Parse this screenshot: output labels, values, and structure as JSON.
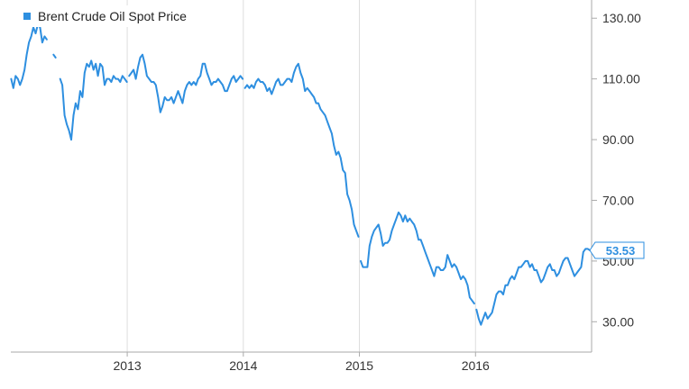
{
  "chart_data": {
    "type": "line",
    "title": "",
    "xlabel": "",
    "ylabel": "",
    "legend_position": "top-left",
    "grid": {
      "vertical": true,
      "horizontal": false
    },
    "ylim": [
      20,
      136
    ],
    "xlim": [
      "2012-01-01",
      "2016-12-31"
    ],
    "x_ticks": [
      "2013",
      "2014",
      "2015",
      "2016"
    ],
    "y_ticks": [
      "30.00",
      "50.00",
      "70.00",
      "90.00",
      "110.00",
      "130.00"
    ],
    "last_value_label": "53.53",
    "colors": {
      "series": "#2e8fe0",
      "grid": "#dddddd",
      "axis": "#aaaaaa"
    },
    "series": [
      {
        "name": "Brent Crude Oil Spot Price",
        "segments": [
          {
            "x": [
              "2012-01-02",
              "2012-01-09",
              "2012-01-16",
              "2012-01-23",
              "2012-01-30",
              "2012-02-06",
              "2012-02-13",
              "2012-02-20",
              "2012-02-27",
              "2012-03-05",
              "2012-03-12",
              "2012-03-19",
              "2012-03-26",
              "2012-04-02",
              "2012-04-09",
              "2012-04-16",
              "2012-04-23"
            ],
            "y": [
              110,
              107,
              111,
              110,
              108,
              110,
              113,
              118,
              122,
              124,
              127,
              125,
              128,
              127,
              122,
              124,
              123
            ]
          },
          {
            "x": [
              "2012-05-14",
              "2012-05-21"
            ],
            "y": [
              118,
              117
            ]
          },
          {
            "x": [
              "2012-06-04",
              "2012-06-11",
              "2012-06-18",
              "2012-06-25",
              "2012-07-02",
              "2012-07-09",
              "2012-07-16",
              "2012-07-23",
              "2012-07-30",
              "2012-08-06",
              "2012-08-13",
              "2012-08-20",
              "2012-08-27",
              "2012-09-03",
              "2012-09-10",
              "2012-09-17",
              "2012-09-24",
              "2012-10-01",
              "2012-10-08",
              "2012-10-15",
              "2012-10-22",
              "2012-10-29",
              "2012-11-05",
              "2012-11-12",
              "2012-11-19",
              "2012-11-26",
              "2012-12-03",
              "2012-12-10",
              "2012-12-17",
              "2012-12-24",
              "2012-12-31"
            ],
            "y": [
              110,
              108,
              98,
              95,
              93,
              90,
              98,
              102,
              100,
              106,
              104,
              112,
              115,
              114,
              116,
              113,
              115,
              111,
              115,
              114,
              108,
              110,
              110,
              109,
              111,
              110,
              110,
              109,
              111,
              110,
              109
            ]
          },
          {
            "x": [
              "2013-01-07",
              "2013-01-14",
              "2013-01-21",
              "2013-01-28",
              "2013-02-04",
              "2013-02-11",
              "2013-02-18",
              "2013-02-25",
              "2013-03-04",
              "2013-03-11",
              "2013-03-18",
              "2013-03-25",
              "2013-04-01",
              "2013-04-08",
              "2013-04-15",
              "2013-04-22",
              "2013-04-29",
              "2013-05-06",
              "2013-05-13",
              "2013-05-20",
              "2013-05-27",
              "2013-06-03",
              "2013-06-10",
              "2013-06-17",
              "2013-06-24",
              "2013-07-01",
              "2013-07-08",
              "2013-07-15",
              "2013-07-22",
              "2013-07-29",
              "2013-08-05",
              "2013-08-12",
              "2013-08-19",
              "2013-08-26",
              "2013-09-02",
              "2013-09-09",
              "2013-09-16",
              "2013-09-23",
              "2013-09-30",
              "2013-10-07",
              "2013-10-14",
              "2013-10-21",
              "2013-10-28",
              "2013-11-04",
              "2013-11-11",
              "2013-11-18",
              "2013-11-25",
              "2013-12-02",
              "2013-12-09",
              "2013-12-16",
              "2013-12-23",
              "2013-12-30"
            ],
            "y": [
              111,
              112,
              113,
              110,
              114,
              117,
              118,
              115,
              111,
              110,
              109,
              109,
              108,
              104,
              99,
              101,
              104,
              103,
              103,
              104,
              102,
              104,
              106,
              104,
              102,
              106,
              108,
              109,
              108,
              109,
              108,
              110,
              111,
              115,
              115,
              112,
              110,
              108,
              109,
              109,
              110,
              109,
              108,
              106,
              106,
              108,
              110,
              111,
              109,
              110,
              111,
              110
            ]
          },
          {
            "x": [
              "2014-01-06",
              "2014-01-13",
              "2014-01-20",
              "2014-01-27",
              "2014-02-03",
              "2014-02-10",
              "2014-02-17",
              "2014-02-24",
              "2014-03-03",
              "2014-03-10",
              "2014-03-17",
              "2014-03-24",
              "2014-03-31",
              "2014-04-07",
              "2014-04-14",
              "2014-04-21",
              "2014-04-28",
              "2014-05-05",
              "2014-05-12",
              "2014-05-19",
              "2014-05-26",
              "2014-06-02",
              "2014-06-09",
              "2014-06-16",
              "2014-06-23",
              "2014-06-30",
              "2014-07-07",
              "2014-07-14",
              "2014-07-21",
              "2014-07-28",
              "2014-08-04",
              "2014-08-11",
              "2014-08-18",
              "2014-08-25",
              "2014-09-01",
              "2014-09-08",
              "2014-09-15",
              "2014-09-22",
              "2014-09-29",
              "2014-10-06",
              "2014-10-13",
              "2014-10-20",
              "2014-10-27",
              "2014-11-03",
              "2014-11-10",
              "2014-11-17",
              "2014-11-24",
              "2014-12-01",
              "2014-12-08",
              "2014-12-15",
              "2014-12-22",
              "2014-12-29"
            ],
            "y": [
              107,
              108,
              107,
              108,
              107,
              109,
              110,
              109,
              109,
              108,
              106,
              107,
              105,
              107,
              109,
              110,
              108,
              108,
              109,
              110,
              110,
              109,
              112,
              114,
              115,
              112,
              110,
              106,
              107,
              106,
              105,
              104,
              102,
              102,
              100,
              99,
              98,
              96,
              94,
              92,
              88,
              85,
              86,
              84,
              80,
              79,
              72,
              70,
              67,
              62,
              60,
              58
            ]
          },
          {
            "x": [
              "2015-01-05",
              "2015-01-12",
              "2015-01-19",
              "2015-01-26",
              "2015-02-02",
              "2015-02-09",
              "2015-02-16",
              "2015-02-23",
              "2015-03-02",
              "2015-03-09",
              "2015-03-16",
              "2015-03-23",
              "2015-03-30",
              "2015-04-06",
              "2015-04-13",
              "2015-04-20",
              "2015-04-27",
              "2015-05-04",
              "2015-05-11",
              "2015-05-18",
              "2015-05-25",
              "2015-06-01",
              "2015-06-08",
              "2015-06-15",
              "2015-06-22",
              "2015-06-29",
              "2015-07-06",
              "2015-07-13",
              "2015-07-20",
              "2015-07-27",
              "2015-08-03",
              "2015-08-10",
              "2015-08-17",
              "2015-08-24",
              "2015-08-31",
              "2015-09-07",
              "2015-09-14",
              "2015-09-21",
              "2015-09-28",
              "2015-10-05",
              "2015-10-12",
              "2015-10-19",
              "2015-10-26",
              "2015-11-02",
              "2015-11-09",
              "2015-11-16",
              "2015-11-23",
              "2015-11-30",
              "2015-12-07",
              "2015-12-14",
              "2015-12-21",
              "2015-12-28"
            ],
            "y": [
              50,
              48,
              48,
              48,
              55,
              58,
              60,
              61,
              62,
              59,
              55,
              56,
              56,
              57,
              60,
              62,
              64,
              66,
              65,
              63,
              65,
              63,
              64,
              63,
              62,
              60,
              57,
              57,
              55,
              53,
              51,
              49,
              47,
              45,
              48,
              48,
              47,
              47,
              48,
              52,
              50,
              48,
              49,
              48,
              46,
              44,
              45,
              44,
              42,
              38,
              37,
              36
            ]
          },
          {
            "x": [
              "2016-01-04",
              "2016-01-11",
              "2016-01-18",
              "2016-01-25",
              "2016-02-01",
              "2016-02-08",
              "2016-02-15",
              "2016-02-22",
              "2016-02-29",
              "2016-03-07",
              "2016-03-14",
              "2016-03-21",
              "2016-03-28",
              "2016-04-04",
              "2016-04-11",
              "2016-04-18",
              "2016-04-25",
              "2016-05-02",
              "2016-05-09",
              "2016-05-16",
              "2016-05-23",
              "2016-05-30",
              "2016-06-06",
              "2016-06-13",
              "2016-06-20",
              "2016-06-27",
              "2016-07-04",
              "2016-07-11",
              "2016-07-18",
              "2016-07-25",
              "2016-08-01",
              "2016-08-08",
              "2016-08-15",
              "2016-08-22",
              "2016-08-29",
              "2016-09-05",
              "2016-09-12",
              "2016-09-19",
              "2016-09-26",
              "2016-10-03",
              "2016-10-10",
              "2016-10-17",
              "2016-10-24",
              "2016-10-31",
              "2016-11-07",
              "2016-11-14",
              "2016-11-21",
              "2016-11-28",
              "2016-12-05",
              "2016-12-12",
              "2016-12-19",
              "2016-12-26"
            ],
            "y": [
              34,
              31,
              29,
              31,
              33,
              31,
              32,
              33,
              36,
              39,
              40,
              40,
              39,
              42,
              42,
              44,
              45,
              44,
              46,
              48,
              48,
              49,
              50,
              50,
              48,
              49,
              47,
              47,
              45,
              43,
              44,
              46,
              48,
              49,
              47,
              47,
              45,
              46,
              48,
              50,
              51,
              51,
              49,
              47,
              45,
              46,
              47,
              48,
              53,
              54,
              54,
              53.53
            ]
          }
        ]
      }
    ]
  }
}
